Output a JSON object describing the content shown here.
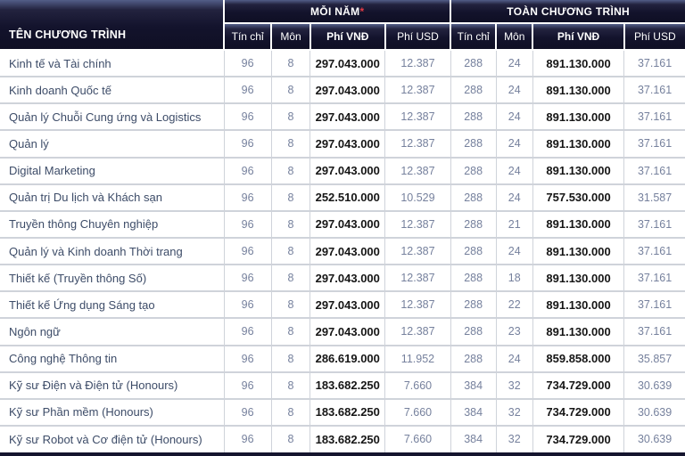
{
  "colors": {
    "header_bg": "#13132c",
    "header_highlight": "#535e88",
    "asterisk": "#e23b44",
    "name_text": "#3d4c68",
    "number_text": "#76819d",
    "vnd_text": "#151515",
    "grid": "#cfd3da",
    "bottom_bar": "#15152e"
  },
  "chart_data": {
    "type": "table",
    "title": "",
    "column_groups": [
      {
        "label": "TÊN CHƯƠNG TRÌNH",
        "span": 1,
        "note": ""
      },
      {
        "label": "MỖI NĂM",
        "span": 4,
        "note": "*"
      },
      {
        "label": "TOÀN CHƯƠNG TRÌNH",
        "span": 4,
        "note": ""
      }
    ],
    "columns": [
      "TÊN CHƯƠNG TRÌNH",
      "Tín chỉ",
      "Môn",
      "Phí VNĐ",
      "Phí USD",
      "Tín chỉ",
      "Môn",
      "Phí VNĐ",
      "Phí USD"
    ],
    "rows": [
      [
        "Kinh tế và Tài chính",
        "96",
        "8",
        "297.043.000",
        "12.387",
        "288",
        "24",
        "891.130.000",
        "37.161"
      ],
      [
        "Kinh doanh Quốc tế",
        "96",
        "8",
        "297.043.000",
        "12.387",
        "288",
        "24",
        "891.130.000",
        "37.161"
      ],
      [
        "Quản lý Chuỗi Cung ứng và Logistics",
        "96",
        "8",
        "297.043.000",
        "12.387",
        "288",
        "24",
        "891.130.000",
        "37.161"
      ],
      [
        "Quản lý",
        "96",
        "8",
        "297.043.000",
        "12.387",
        "288",
        "24",
        "891.130.000",
        "37.161"
      ],
      [
        "Digital Marketing",
        "96",
        "8",
        "297.043.000",
        "12.387",
        "288",
        "24",
        "891.130.000",
        "37.161"
      ],
      [
        "Quản trị Du lịch và Khách sạn",
        "96",
        "8",
        "252.510.000",
        "10.529",
        "288",
        "24",
        "757.530.000",
        "31.587"
      ],
      [
        "Truyền thông Chuyên nghiệp",
        "96",
        "8",
        "297.043.000",
        "12.387",
        "288",
        "21",
        "891.130.000",
        "37.161"
      ],
      [
        "Quản lý và Kinh doanh Thời trang",
        "96",
        "8",
        "297.043.000",
        "12.387",
        "288",
        "24",
        "891.130.000",
        "37.161"
      ],
      [
        "Thiết kế (Truyền thông Số)",
        "96",
        "8",
        "297.043.000",
        "12.387",
        "288",
        "18",
        "891.130.000",
        "37.161"
      ],
      [
        "Thiết kế Ứng dụng Sáng tạo",
        "96",
        "8",
        "297.043.000",
        "12.387",
        "288",
        "22",
        "891.130.000",
        "37.161"
      ],
      [
        "Ngôn ngữ",
        "96",
        "8",
        "297.043.000",
        "12.387",
        "288",
        "23",
        "891.130.000",
        "37.161"
      ],
      [
        "Công nghệ Thông tin",
        "96",
        "8",
        "286.619.000",
        "11.952",
        "288",
        "24",
        "859.858.000",
        "35.857"
      ],
      [
        "Kỹ sư Điện và Điện tử (Honours)",
        "96",
        "8",
        "183.682.250",
        "7.660",
        "384",
        "32",
        "734.729.000",
        "30.639"
      ],
      [
        "Kỹ sư Phần mềm (Honours)",
        "96",
        "8",
        "183.682.250",
        "7.660",
        "384",
        "32",
        "734.729.000",
        "30.639"
      ],
      [
        "Kỹ sư Robot và Cơ điện tử (Honours)",
        "96",
        "8",
        "183.682.250",
        "7.660",
        "384",
        "32",
        "734.729.000",
        "30.639"
      ]
    ],
    "layout": {
      "grid": true,
      "bold_columns": [
        3,
        7
      ],
      "header_rows": 2
    }
  }
}
